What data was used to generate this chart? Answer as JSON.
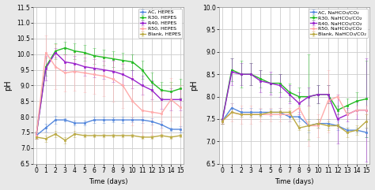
{
  "left": {
    "xlabel": "Time (days)",
    "ylabel": "pH",
    "ylim": [
      6.5,
      11.5
    ],
    "yticks": [
      6.5,
      7.0,
      7.5,
      8.0,
      8.5,
      9.0,
      9.5,
      10.0,
      10.5,
      11.0,
      11.5
    ],
    "xlim": [
      -0.3,
      15.3
    ],
    "xticks": [
      0,
      1,
      2,
      3,
      4,
      5,
      6,
      7,
      8,
      9,
      10,
      11,
      12,
      13,
      14,
      15
    ],
    "series": [
      {
        "label": "AC, HEPES",
        "color": "#5588dd",
        "ecolor": "#5588dd",
        "x": [
          0,
          1,
          2,
          3,
          4,
          5,
          6,
          7,
          8,
          9,
          10,
          11,
          12,
          13,
          14,
          15
        ],
        "y": [
          7.4,
          7.65,
          7.9,
          7.9,
          7.8,
          7.8,
          7.9,
          7.9,
          7.9,
          7.9,
          7.9,
          7.9,
          7.85,
          7.75,
          7.6,
          7.6
        ],
        "yerr": [
          0.05,
          0.12,
          0.12,
          0.06,
          0.08,
          0.08,
          0.1,
          0.1,
          0.08,
          0.1,
          0.08,
          0.1,
          0.1,
          0.1,
          0.05,
          0.1
        ]
      },
      {
        "label": "R30, HEPES",
        "color": "#22bb22",
        "ecolor": "#22bb22",
        "x": [
          0,
          1,
          2,
          3,
          4,
          5,
          6,
          7,
          8,
          9,
          10,
          11,
          12,
          13,
          14,
          15
        ],
        "y": [
          7.4,
          9.6,
          10.1,
          10.2,
          10.1,
          10.05,
          9.95,
          9.9,
          9.85,
          9.8,
          9.75,
          9.5,
          9.1,
          8.85,
          8.8,
          8.9
        ],
        "yerr": [
          0.1,
          0.3,
          0.25,
          0.2,
          0.25,
          0.25,
          0.25,
          0.25,
          0.25,
          0.25,
          0.25,
          0.3,
          0.3,
          0.25,
          0.3,
          0.3
        ]
      },
      {
        "label": "R40, HEPES",
        "color": "#9922cc",
        "ecolor": "#9922cc",
        "x": [
          0,
          1,
          2,
          3,
          4,
          5,
          6,
          7,
          8,
          9,
          10,
          11,
          12,
          13,
          14,
          15
        ],
        "y": [
          7.4,
          9.55,
          10.05,
          9.75,
          9.7,
          9.6,
          9.55,
          9.5,
          9.45,
          9.35,
          9.2,
          9.0,
          8.85,
          8.55,
          8.55,
          8.55
        ],
        "yerr": [
          0.1,
          0.4,
          0.15,
          0.25,
          0.25,
          0.3,
          0.3,
          0.3,
          0.35,
          0.35,
          0.3,
          0.3,
          0.3,
          0.3,
          0.35,
          0.35
        ]
      },
      {
        "label": "R50, HEPES",
        "color": "#ffaaaa",
        "ecolor": "#ffaaaa",
        "x": [
          0,
          1,
          2,
          3,
          4,
          5,
          6,
          7,
          8,
          9,
          10,
          11,
          12,
          13,
          14,
          15
        ],
        "y": [
          7.4,
          10.05,
          9.6,
          9.4,
          9.45,
          9.4,
          9.35,
          9.3,
          9.2,
          9.0,
          8.5,
          8.2,
          8.15,
          8.1,
          8.55,
          8.3
        ],
        "yerr": [
          0.1,
          0.55,
          0.72,
          0.58,
          0.62,
          0.62,
          0.62,
          0.65,
          0.72,
          0.72,
          0.78,
          0.82,
          0.72,
          0.72,
          0.68,
          0.72
        ]
      },
      {
        "label": "Blank, HEPES",
        "color": "#bbaa44",
        "ecolor": "#bbaa44",
        "x": [
          0,
          1,
          2,
          3,
          4,
          5,
          6,
          7,
          8,
          9,
          10,
          11,
          12,
          13,
          14,
          15
        ],
        "y": [
          7.35,
          7.3,
          7.45,
          7.25,
          7.45,
          7.4,
          7.4,
          7.4,
          7.4,
          7.4,
          7.4,
          7.35,
          7.35,
          7.4,
          7.35,
          7.4
        ],
        "yerr": [
          0.05,
          0.1,
          0.1,
          0.1,
          0.1,
          0.05,
          0.05,
          0.05,
          0.05,
          0.05,
          0.05,
          0.05,
          0.05,
          0.05,
          0.05,
          0.05
        ]
      }
    ]
  },
  "right": {
    "xlabel": "Time (days)",
    "ylabel": "pH",
    "ylim": [
      6.5,
      10.0
    ],
    "yticks": [
      6.5,
      7.0,
      7.5,
      8.0,
      8.5,
      9.0,
      9.5,
      10.0
    ],
    "xlim": [
      -0.3,
      15.3
    ],
    "xticks": [
      0,
      1,
      2,
      3,
      4,
      5,
      6,
      7,
      8,
      9,
      10,
      11,
      12,
      13,
      14,
      15
    ],
    "series": [
      {
        "label": "AC, NaHCO₃/CO₂",
        "color": "#5588dd",
        "ecolor": "#5588dd",
        "x": [
          0,
          1,
          2,
          3,
          4,
          5,
          6,
          7,
          8,
          9,
          10,
          11,
          12,
          13,
          14,
          15
        ],
        "y": [
          7.45,
          7.75,
          7.65,
          7.65,
          7.65,
          7.65,
          7.65,
          7.55,
          7.55,
          7.35,
          7.4,
          7.4,
          7.35,
          7.25,
          7.25,
          7.2
        ],
        "yerr": [
          0.05,
          0.1,
          0.1,
          0.1,
          0.08,
          0.08,
          0.1,
          0.1,
          0.1,
          0.15,
          0.1,
          0.1,
          0.1,
          0.05,
          0.05,
          0.1
        ]
      },
      {
        "label": "R30, NaHCO₃/CO₂",
        "color": "#22bb22",
        "ecolor": "#22bb22",
        "x": [
          0,
          1,
          2,
          3,
          4,
          5,
          6,
          7,
          8,
          9,
          10,
          11,
          12,
          13,
          14,
          15
        ],
        "y": [
          7.45,
          8.6,
          8.5,
          8.5,
          8.4,
          8.3,
          8.3,
          8.1,
          8.0,
          8.0,
          8.05,
          8.05,
          7.7,
          7.8,
          7.9,
          7.95
        ],
        "yerr": [
          0.05,
          0.25,
          0.3,
          0.25,
          0.2,
          0.2,
          0.2,
          0.2,
          0.2,
          0.95,
          0.2,
          0.2,
          0.1,
          0.15,
          0.2,
          0.85
        ]
      },
      {
        "label": "R40, NaHCO₃/CO₂",
        "color": "#9922cc",
        "ecolor": "#9922cc",
        "x": [
          0,
          1,
          2,
          3,
          4,
          5,
          6,
          7,
          8,
          9,
          10,
          11,
          12,
          13,
          14,
          15
        ],
        "y": [
          7.45,
          8.55,
          8.5,
          8.5,
          8.35,
          8.3,
          8.25,
          8.05,
          7.85,
          8.0,
          8.05,
          8.05,
          7.5,
          7.6,
          7.7,
          7.7
        ],
        "yerr": [
          0.05,
          0.3,
          0.25,
          0.25,
          0.25,
          0.25,
          0.25,
          0.2,
          0.25,
          0.2,
          0.2,
          0.2,
          0.55,
          0.15,
          0.2,
          1.15
        ]
      },
      {
        "label": "R50, NaHCO₃/CO₂",
        "color": "#ffaaaa",
        "ecolor": "#ffaaaa",
        "x": [
          0,
          1,
          2,
          3,
          4,
          5,
          6,
          7,
          8,
          9,
          10,
          11,
          12,
          13,
          14,
          15
        ],
        "y": [
          7.45,
          7.65,
          7.6,
          7.6,
          7.6,
          7.6,
          7.6,
          7.6,
          7.75,
          7.35,
          7.35,
          7.9,
          8.0,
          7.6,
          7.7,
          7.7
        ],
        "yerr": [
          0.05,
          0.2,
          0.2,
          0.2,
          0.15,
          0.15,
          0.15,
          0.15,
          0.15,
          0.45,
          0.25,
          0.7,
          0.05,
          0.1,
          0.1,
          0.1
        ]
      },
      {
        "label": "Blank, NaHCO₃/CO₂",
        "color": "#bbaa44",
        "ecolor": "#bbaa44",
        "x": [
          0,
          1,
          2,
          3,
          4,
          5,
          6,
          7,
          8,
          9,
          10,
          11,
          12,
          13,
          14,
          15
        ],
        "y": [
          7.45,
          7.65,
          7.6,
          7.6,
          7.6,
          7.65,
          7.65,
          7.65,
          7.3,
          7.35,
          7.4,
          7.35,
          7.35,
          7.2,
          7.25,
          7.45
        ],
        "yerr": [
          0.05,
          0.1,
          0.05,
          0.05,
          0.05,
          0.05,
          0.05,
          0.05,
          0.05,
          0.1,
          0.1,
          0.1,
          0.05,
          0.1,
          0.1,
          0.15
        ]
      }
    ]
  },
  "bg_color": "#e8e8e8",
  "plot_bg": "#ffffff",
  "grid_color": "#cccccc",
  "marker": "s",
  "markersize": 2.0,
  "linewidth": 1.0,
  "capsize": 1.5,
  "elinewidth": 0.7,
  "alpha_err": 0.5
}
